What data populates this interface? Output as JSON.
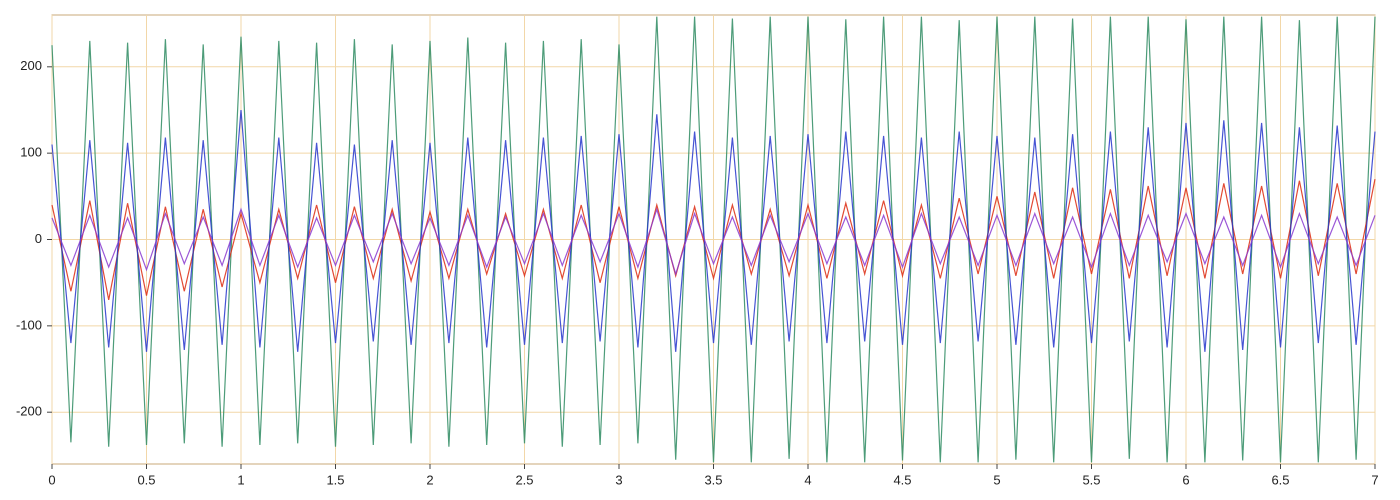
{
  "chart_data": {
    "type": "line",
    "xlim": [
      0,
      7
    ],
    "ylim": [
      -260,
      260
    ],
    "xticks": [
      0,
      0.5,
      1,
      1.5,
      2,
      2.5,
      3,
      3.5,
      4,
      4.5,
      5,
      5.5,
      6,
      6.5,
      7
    ],
    "yticks": [
      -200,
      -100,
      0,
      100,
      200
    ],
    "grid": true,
    "x": [
      0,
      0.1,
      0.2,
      0.3,
      0.4,
      0.5,
      0.6,
      0.7,
      0.8,
      0.9,
      1,
      1.1,
      1.2,
      1.3,
      1.4,
      1.5,
      1.6,
      1.7,
      1.8,
      1.9,
      2,
      2.1,
      2.2,
      2.3,
      2.4,
      2.5,
      2.6,
      2.7,
      2.8,
      2.9,
      3,
      3.1,
      3.2,
      3.3,
      3.4,
      3.5,
      3.6,
      3.7,
      3.8,
      3.9,
      4,
      4.1,
      4.2,
      4.3,
      4.4,
      4.5,
      4.6,
      4.7,
      4.8,
      4.9,
      5,
      5.1,
      5.2,
      5.3,
      5.4,
      5.5,
      5.6,
      5.7,
      5.8,
      5.9,
      6,
      6.1,
      6.2,
      6.3,
      6.4,
      6.5,
      6.6,
      6.7,
      6.8,
      6.9,
      7
    ],
    "series": [
      {
        "color": "#2e8b62",
        "values": [
          225,
          -235,
          230,
          -240,
          228,
          -238,
          232,
          -236,
          226,
          -240,
          235,
          -238,
          230,
          -236,
          228,
          -240,
          232,
          -238,
          226,
          -236,
          230,
          -240,
          234,
          -238,
          228,
          -236,
          230,
          -240,
          232,
          -238,
          226,
          -236,
          258,
          -255,
          258,
          -258,
          256,
          -258,
          258,
          -254,
          258,
          -258,
          255,
          -258,
          258,
          -256,
          258,
          -258,
          254,
          -258,
          258,
          -255,
          258,
          -258,
          256,
          -258,
          258,
          -254,
          258,
          -258,
          255,
          -258,
          258,
          -256,
          258,
          -258,
          254,
          -258,
          258,
          -255,
          258
        ]
      },
      {
        "color": "#dd2a10",
        "values": [
          40,
          -60,
          45,
          -70,
          42,
          -65,
          38,
          -60,
          35,
          -55,
          30,
          -50,
          35,
          -45,
          40,
          -50,
          38,
          -45,
          35,
          -48,
          32,
          -45,
          35,
          -40,
          30,
          -42,
          35,
          -45,
          40,
          -50,
          38,
          -45,
          40,
          -42,
          38,
          -45,
          40,
          -40,
          35,
          -42,
          40,
          -45,
          42,
          -40,
          45,
          -42,
          40,
          -45,
          48,
          -40,
          50,
          -42,
          55,
          -45,
          60,
          -40,
          58,
          -45,
          62,
          -42,
          60,
          -45,
          65,
          -40,
          62,
          -45,
          68,
          -42,
          65,
          -40,
          70
        ]
      },
      {
        "color": "#2636cc",
        "values": [
          110,
          -120,
          115,
          -125,
          112,
          -130,
          118,
          -128,
          115,
          -122,
          150,
          -125,
          118,
          -130,
          112,
          -120,
          110,
          -118,
          115,
          -122,
          112,
          -120,
          118,
          -125,
          115,
          -122,
          118,
          -120,
          120,
          -118,
          122,
          -125,
          145,
          -130,
          125,
          -120,
          118,
          -122,
          120,
          -118,
          122,
          -120,
          125,
          -118,
          120,
          -122,
          118,
          -120,
          125,
          -118,
          120,
          -122,
          118,
          -125,
          122,
          -120,
          125,
          -118,
          130,
          -125,
          135,
          -130,
          138,
          -128,
          135,
          -125,
          130,
          -120,
          132,
          -122,
          125
        ]
      },
      {
        "color": "#8a3ad0",
        "values": [
          25,
          -30,
          28,
          -32,
          25,
          -35,
          30,
          -28,
          26,
          -30,
          35,
          -30,
          28,
          -32,
          25,
          -30,
          28,
          -26,
          30,
          -28,
          25,
          -30,
          28,
          -32,
          26,
          -28,
          30,
          -30,
          28,
          -26,
          30,
          -32,
          35,
          -40,
          30,
          -28,
          26,
          -30,
          28,
          -26,
          30,
          -28,
          26,
          -30,
          28,
          -32,
          30,
          -28,
          26,
          -30,
          28,
          -30,
          30,
          -28,
          26,
          -32,
          30,
          -30,
          28,
          -26,
          30,
          -28,
          26,
          -30,
          28,
          -32,
          30,
          -28,
          26,
          -30,
          28
        ]
      }
    ]
  }
}
